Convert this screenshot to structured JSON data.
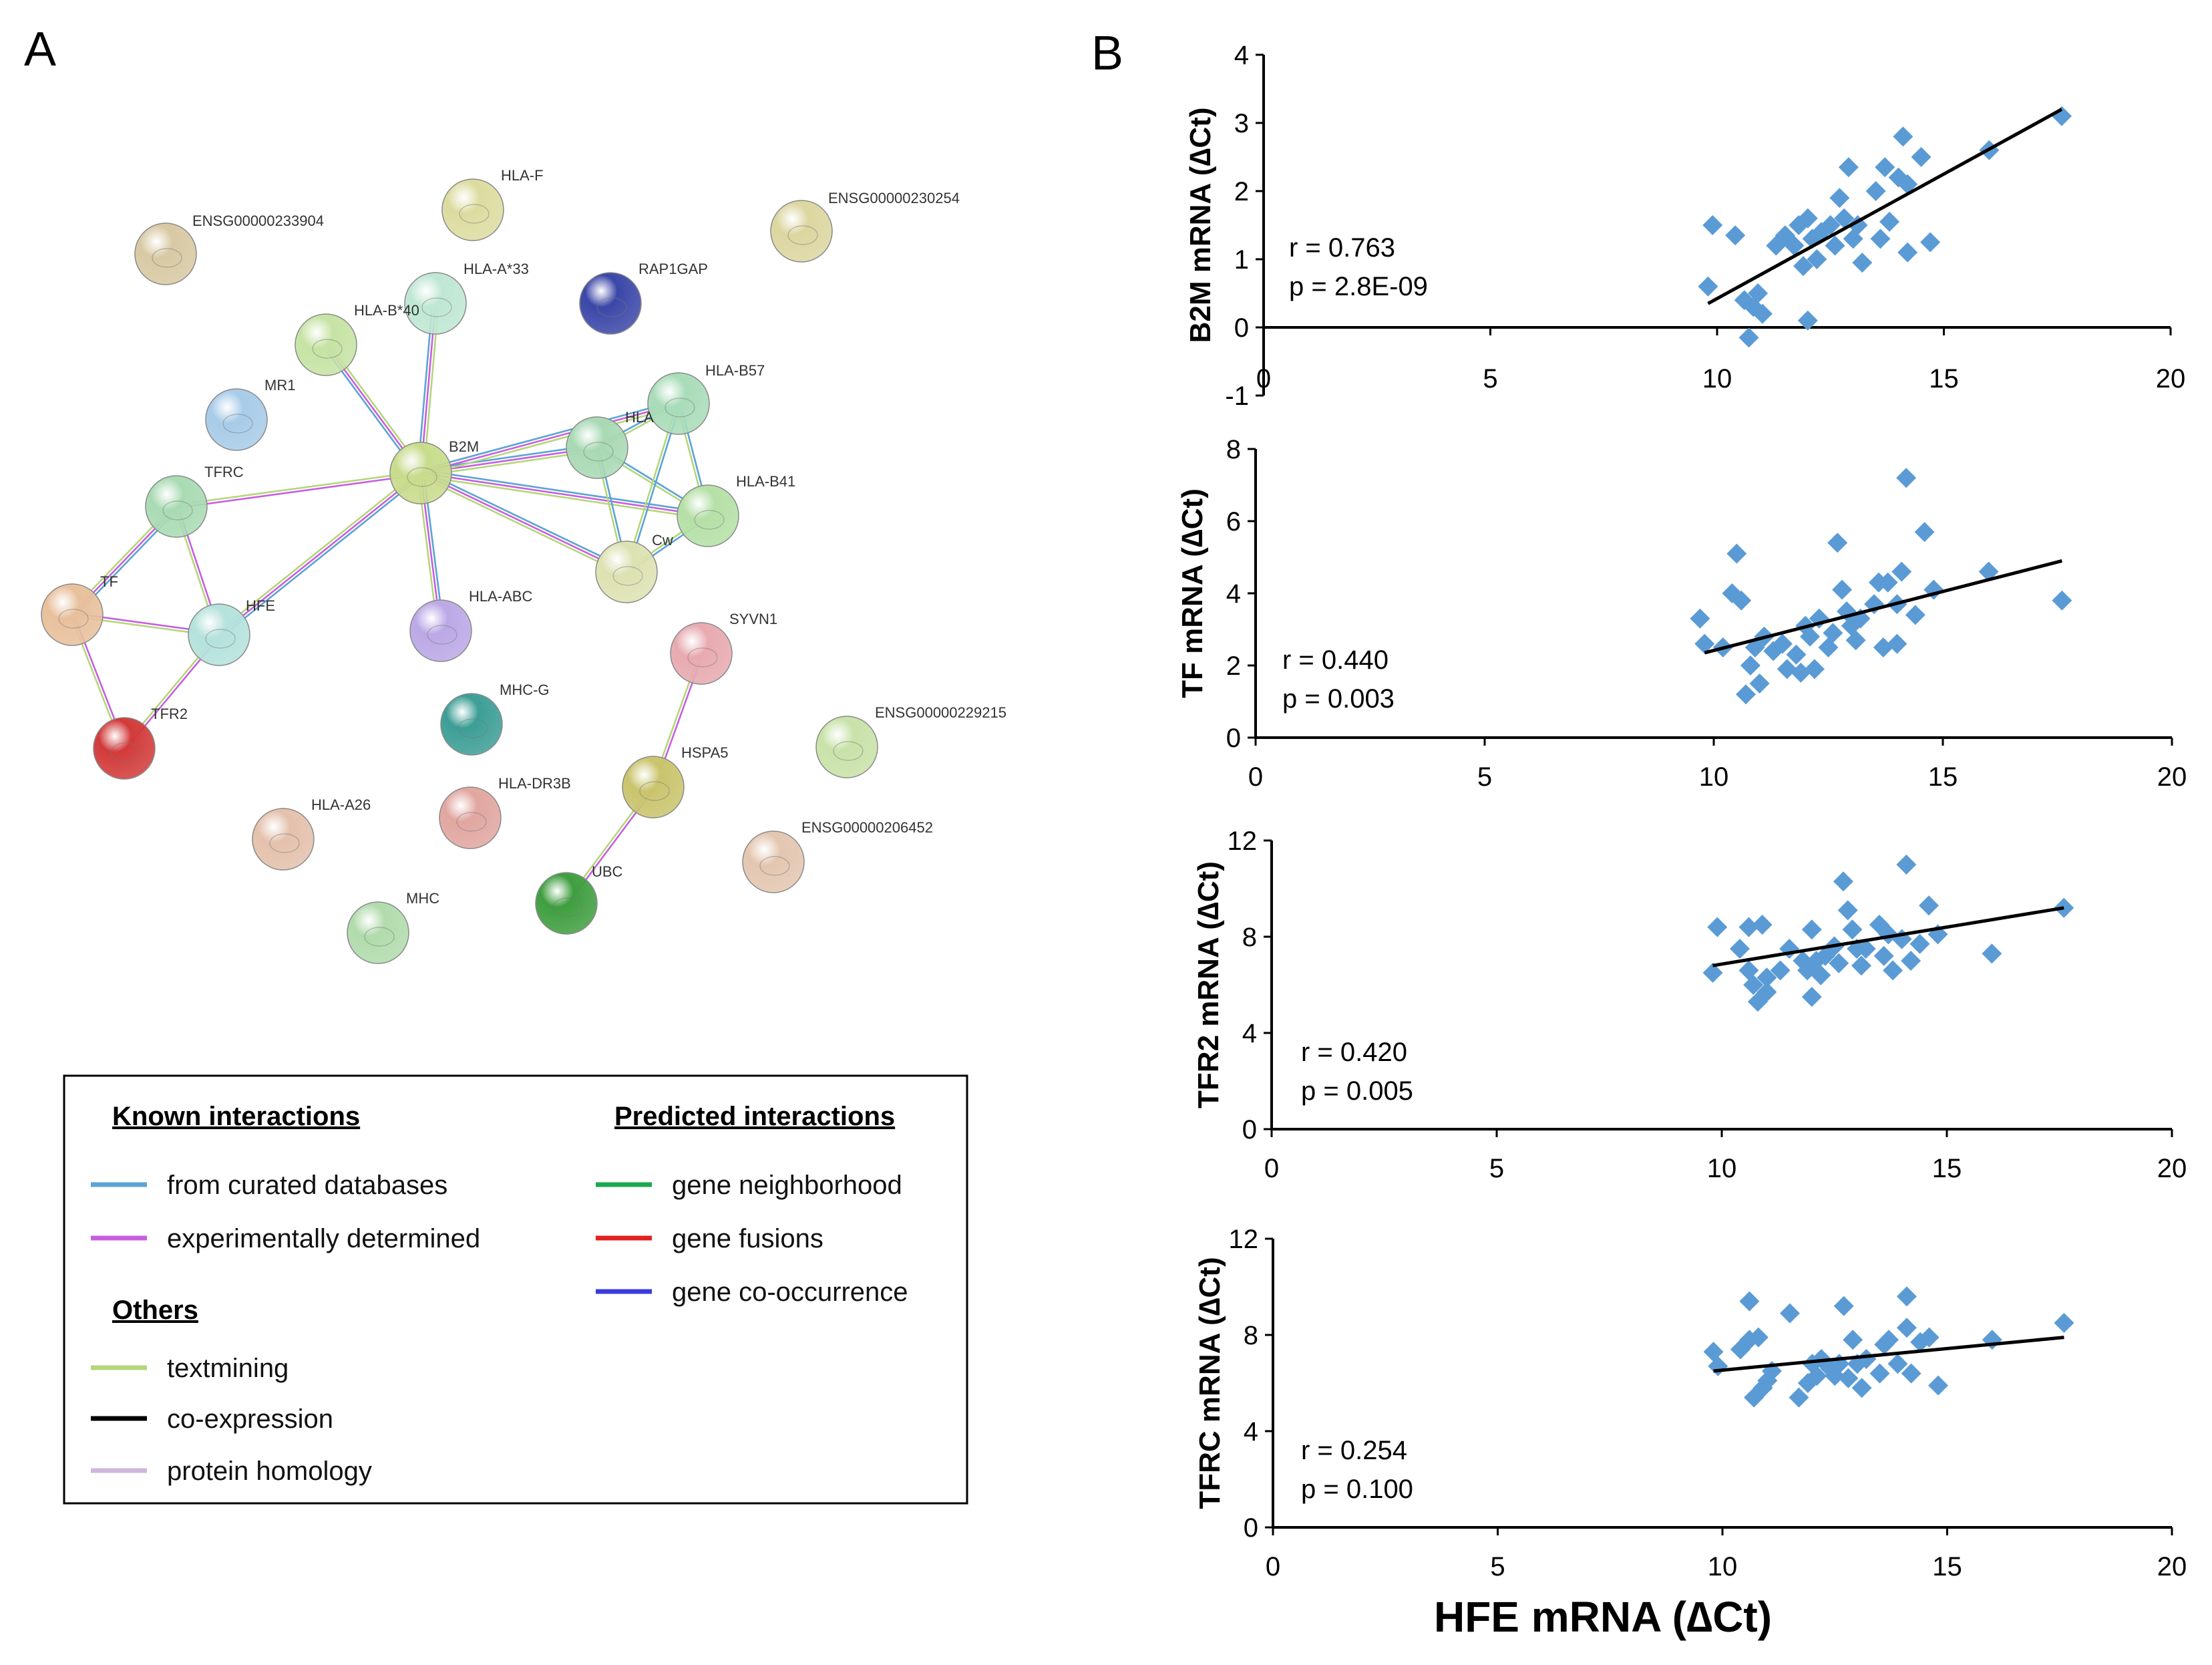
{
  "panel_a": {
    "label": "A",
    "nodes": [
      {
        "id": "ENSG00000233904",
        "color": "#d8c9a3"
      },
      {
        "id": "HLA-F",
        "color": "#dcdca0"
      },
      {
        "id": "ENSG00000230254",
        "color": "#dcd6a0"
      },
      {
        "id": "HLA-A*33",
        "color": "#bfe7d3"
      },
      {
        "id": "RAP1GAP",
        "color": "#3b47a8"
      },
      {
        "id": "HLA-B*40",
        "color": "#c6e3a4"
      },
      {
        "id": "MR1",
        "color": "#a8cbe8"
      },
      {
        "id": "HLA-B57",
        "color": "#a9dcb9"
      },
      {
        "id": "HLA",
        "color": "#a9d9b4"
      },
      {
        "id": "B2M",
        "color": "#c8dc8c"
      },
      {
        "id": "TFRC",
        "color": "#a9dbb3"
      },
      {
        "id": "HLA-B41",
        "color": "#b5e0a6"
      },
      {
        "id": "Cw",
        "color": "#dde2b2"
      },
      {
        "id": "TF",
        "color": "#e8c09c"
      },
      {
        "id": "HFE",
        "color": "#b4e2dc"
      },
      {
        "id": "HLA-ABC",
        "color": "#bba8e6"
      },
      {
        "id": "SYVN1",
        "color": "#e7aab0"
      },
      {
        "id": "TFR2",
        "color": "#d23a3a"
      },
      {
        "id": "MHC-G",
        "color": "#3c9e96"
      },
      {
        "id": "ENSG00000229215",
        "color": "#c8e2a8"
      },
      {
        "id": "HSPA5",
        "color": "#c9c46c"
      },
      {
        "id": "HLA-DR3B",
        "color": "#e1a6a0"
      },
      {
        "id": "HLA-A26",
        "color": "#e4c1ac"
      },
      {
        "id": "ENSG00000206452",
        "color": "#e3c6b0"
      },
      {
        "id": "UBC",
        "color": "#3f9e3f"
      },
      {
        "id": "MHC",
        "color": "#b1dbac"
      }
    ],
    "legend": {
      "known_title": "Known interactions",
      "predicted_title": "Predicted interactions",
      "others_title": "Others",
      "items": [
        {
          "label": "from curated databases",
          "color": "#5ba3d6"
        },
        {
          "label": "experimentally determined",
          "color": "#c85ee0"
        },
        {
          "label": "gene neighborhood",
          "color": "#1aa850"
        },
        {
          "label": "gene fusions",
          "color": "#e32020"
        },
        {
          "label": "gene co-occurrence",
          "color": "#3a3ae0"
        },
        {
          "label": "textmining",
          "color": "#b5d67a"
        },
        {
          "label": "co-expression",
          "color": "#000000"
        },
        {
          "label": "protein homology",
          "color": "#cdb7dc"
        }
      ]
    }
  },
  "panel_b": {
    "label": "B"
  },
  "chart_data": [
    {
      "type": "scatter",
      "ylabel": "B2M mRNA (∆Ct)",
      "xlabel": "",
      "xlim": [
        0,
        20
      ],
      "ylim": [
        -1,
        4
      ],
      "xticks": [
        0,
        5,
        10,
        15,
        20
      ],
      "yticks": [
        -1,
        0,
        1,
        2,
        3,
        4
      ],
      "r_text": "r = 0.763",
      "p_text": "p = 2.8E-09",
      "trend": {
        "x": [
          9.8,
          17.6
        ],
        "y": [
          0.35,
          3.2
        ]
      },
      "points": [
        [
          9.8,
          0.6
        ],
        [
          9.9,
          1.5
        ],
        [
          10.4,
          1.35
        ],
        [
          10.6,
          0.4
        ],
        [
          10.7,
          -0.15
        ],
        [
          10.8,
          0.3
        ],
        [
          10.9,
          0.5
        ],
        [
          11.0,
          0.2
        ],
        [
          11.3,
          1.2
        ],
        [
          11.5,
          1.35
        ],
        [
          11.7,
          1.2
        ],
        [
          11.8,
          1.5
        ],
        [
          11.9,
          0.9
        ],
        [
          12.0,
          1.6
        ],
        [
          12.0,
          0.1
        ],
        [
          12.1,
          1.3
        ],
        [
          12.2,
          1.0
        ],
        [
          12.3,
          1.4
        ],
        [
          12.5,
          1.5
        ],
        [
          12.6,
          1.2
        ],
        [
          12.7,
          1.9
        ],
        [
          12.8,
          1.6
        ],
        [
          12.9,
          2.35
        ],
        [
          13.0,
          1.3
        ],
        [
          13.1,
          1.5
        ],
        [
          13.2,
          0.95
        ],
        [
          13.5,
          2.0
        ],
        [
          13.6,
          1.3
        ],
        [
          13.7,
          2.35
        ],
        [
          13.8,
          1.55
        ],
        [
          14.0,
          2.2
        ],
        [
          14.1,
          2.8
        ],
        [
          14.2,
          2.1
        ],
        [
          14.2,
          1.1
        ],
        [
          14.5,
          2.5
        ],
        [
          14.7,
          1.25
        ],
        [
          16.0,
          2.6
        ],
        [
          17.6,
          3.1
        ]
      ]
    },
    {
      "type": "scatter",
      "ylabel": "TF mRNA (∆Ct)",
      "xlabel": "",
      "xlim": [
        0,
        20
      ],
      "ylim": [
        0,
        8
      ],
      "xticks": [
        0,
        5,
        10,
        15,
        20
      ],
      "yticks": [
        0,
        2,
        4,
        6,
        8
      ],
      "r_text": "r = 0.440",
      "p_text": "p = 0.003",
      "trend": {
        "x": [
          9.8,
          17.6
        ],
        "y": [
          2.35,
          4.9
        ]
      },
      "points": [
        [
          9.7,
          3.3
        ],
        [
          9.8,
          2.6
        ],
        [
          10.2,
          2.5
        ],
        [
          10.4,
          4.0
        ],
        [
          10.5,
          5.1
        ],
        [
          10.6,
          3.8
        ],
        [
          10.7,
          1.2
        ],
        [
          10.8,
          2.0
        ],
        [
          10.9,
          2.5
        ],
        [
          11.0,
          1.5
        ],
        [
          11.1,
          2.8
        ],
        [
          11.3,
          2.4
        ],
        [
          11.5,
          2.6
        ],
        [
          11.6,
          1.9
        ],
        [
          11.8,
          2.3
        ],
        [
          11.9,
          1.8
        ],
        [
          12.0,
          3.1
        ],
        [
          12.1,
          2.8
        ],
        [
          12.2,
          1.9
        ],
        [
          12.3,
          3.3
        ],
        [
          12.5,
          2.5
        ],
        [
          12.6,
          2.9
        ],
        [
          12.7,
          5.4
        ],
        [
          12.8,
          4.1
        ],
        [
          12.9,
          3.5
        ],
        [
          13.0,
          3.1
        ],
        [
          13.1,
          2.7
        ],
        [
          13.2,
          3.3
        ],
        [
          13.5,
          3.7
        ],
        [
          13.6,
          4.3
        ],
        [
          13.7,
          2.5
        ],
        [
          13.8,
          4.3
        ],
        [
          14.0,
          3.7
        ],
        [
          14.0,
          2.6
        ],
        [
          14.1,
          4.6
        ],
        [
          14.2,
          7.2
        ],
        [
          14.4,
          3.4
        ],
        [
          14.6,
          5.7
        ],
        [
          14.8,
          4.1
        ],
        [
          16.0,
          4.6
        ],
        [
          17.6,
          3.8
        ]
      ]
    },
    {
      "type": "scatter",
      "ylabel": "TFR2 mRNA (∆Ct)",
      "xlabel": "",
      "xlim": [
        0,
        20
      ],
      "ylim": [
        0,
        12
      ],
      "xticks": [
        0,
        5,
        10,
        15,
        20
      ],
      "yticks": [
        0,
        4,
        8,
        12
      ],
      "r_text": "r = 0.420",
      "p_text": "p = 0.005",
      "trend": {
        "x": [
          9.8,
          17.6
        ],
        "y": [
          6.8,
          9.2
        ]
      },
      "points": [
        [
          9.8,
          6.5
        ],
        [
          9.9,
          8.4
        ],
        [
          10.4,
          7.5
        ],
        [
          10.6,
          8.4
        ],
        [
          10.6,
          6.6
        ],
        [
          10.7,
          6.0
        ],
        [
          10.8,
          5.3
        ],
        [
          10.9,
          8.5
        ],
        [
          11.0,
          5.7
        ],
        [
          11.0,
          6.3
        ],
        [
          11.3,
          6.6
        ],
        [
          11.5,
          7.5
        ],
        [
          11.8,
          7.0
        ],
        [
          11.9,
          6.6
        ],
        [
          12.0,
          8.3
        ],
        [
          12.0,
          5.5
        ],
        [
          12.1,
          7.0
        ],
        [
          12.2,
          6.4
        ],
        [
          12.3,
          7.2
        ],
        [
          12.5,
          7.6
        ],
        [
          12.6,
          6.9
        ],
        [
          12.7,
          10.3
        ],
        [
          12.8,
          9.1
        ],
        [
          12.9,
          8.3
        ],
        [
          13.0,
          7.5
        ],
        [
          13.1,
          6.8
        ],
        [
          13.2,
          7.5
        ],
        [
          13.5,
          8.5
        ],
        [
          13.6,
          7.2
        ],
        [
          13.7,
          8.1
        ],
        [
          13.8,
          6.6
        ],
        [
          14.0,
          7.9
        ],
        [
          14.1,
          11.0
        ],
        [
          14.2,
          7.0
        ],
        [
          14.4,
          7.7
        ],
        [
          14.6,
          9.3
        ],
        [
          14.8,
          8.1
        ],
        [
          16.0,
          7.3
        ],
        [
          17.6,
          9.2
        ]
      ]
    },
    {
      "type": "scatter",
      "ylabel": "TFRC mRNA (∆Ct)",
      "xlabel": "HFE mRNA (∆Ct)",
      "xlim": [
        0,
        20
      ],
      "ylim": [
        0,
        12
      ],
      "xticks": [
        0,
        5,
        10,
        15,
        20
      ],
      "yticks": [
        0,
        4,
        8,
        12
      ],
      "r_text": "r = 0.254",
      "p_text": "p = 0.100",
      "trend": {
        "x": [
          9.8,
          17.6
        ],
        "y": [
          6.5,
          7.9
        ]
      },
      "points": [
        [
          9.8,
          7.3
        ],
        [
          9.9,
          6.7
        ],
        [
          10.4,
          7.4
        ],
        [
          10.6,
          9.4
        ],
        [
          10.6,
          7.8
        ],
        [
          10.7,
          5.4
        ],
        [
          10.8,
          7.9
        ],
        [
          10.9,
          5.8
        ],
        [
          11.0,
          6.1
        ],
        [
          11.1,
          6.5
        ],
        [
          11.5,
          8.9
        ],
        [
          11.7,
          5.4
        ],
        [
          11.9,
          6.0
        ],
        [
          12.0,
          6.8
        ],
        [
          12.1,
          6.3
        ],
        [
          12.2,
          7.0
        ],
        [
          12.4,
          6.6
        ],
        [
          12.5,
          6.3
        ],
        [
          12.6,
          6.8
        ],
        [
          12.7,
          9.2
        ],
        [
          12.8,
          6.2
        ],
        [
          12.9,
          7.8
        ],
        [
          13.0,
          6.8
        ],
        [
          13.1,
          5.8
        ],
        [
          13.2,
          7.0
        ],
        [
          13.5,
          6.4
        ],
        [
          13.6,
          7.6
        ],
        [
          13.7,
          7.8
        ],
        [
          13.9,
          6.8
        ],
        [
          14.1,
          9.6
        ],
        [
          14.1,
          8.3
        ],
        [
          14.2,
          6.4
        ],
        [
          14.4,
          7.7
        ],
        [
          14.6,
          7.9
        ],
        [
          14.8,
          5.9
        ],
        [
          16.0,
          7.8
        ],
        [
          17.6,
          8.5
        ]
      ]
    }
  ]
}
